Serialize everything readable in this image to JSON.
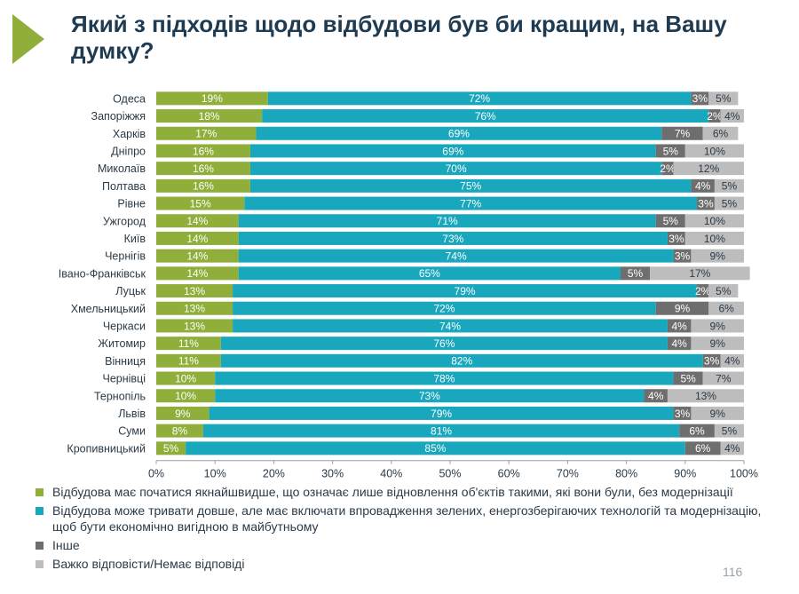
{
  "header": {
    "title": "Який з підходів щодо відбудови був би кращим, на Вашу думку?"
  },
  "chart_data": {
    "type": "bar",
    "orientation": "horizontal",
    "stacked": true,
    "percent_stacked": true,
    "title": "Який з підходів щодо відбудови був би кращим, на Вашу думку?",
    "categories": [
      "Одеса",
      "Запоріжжя",
      "Харків",
      "Дніпро",
      "Миколаїв",
      "Полтава",
      "Рівне",
      "Ужгород",
      "Київ",
      "Чернігів",
      "Івано-Франківськ",
      "Луцьк",
      "Хмельницький",
      "Черкаси",
      "Житомир",
      "Вінниця",
      "Чернівці",
      "Тернопіль",
      "Львів",
      "Суми",
      "Кропивницький"
    ],
    "series": [
      {
        "name": "Відбудова має початися якнайшвидше, що означає лише відновлення об'єктів такими, які вони були, без модернізації",
        "color": "#8fae3a",
        "values": [
          19,
          18,
          17,
          16,
          16,
          16,
          15,
          14,
          14,
          14,
          14,
          13,
          13,
          13,
          11,
          11,
          10,
          10,
          9,
          8,
          5
        ]
      },
      {
        "name": "Відбудова може тривати довше, але має включати впровадження зелених, енергозберігаючих технологій та модернізацію, щоб бути економічно вигідною в майбутньому",
        "color": "#19a7bd",
        "values": [
          72,
          76,
          69,
          69,
          70,
          75,
          77,
          71,
          73,
          74,
          65,
          79,
          72,
          74,
          76,
          82,
          78,
          73,
          79,
          81,
          85
        ]
      },
      {
        "name": "Інше",
        "color": "#6e6e6e",
        "values": [
          3,
          2,
          7,
          5,
          2,
          4,
          3,
          5,
          3,
          3,
          5,
          2,
          9,
          4,
          4,
          3,
          5,
          4,
          3,
          6,
          6
        ]
      },
      {
        "name": "Важко відповісти/Немає відповіді",
        "color": "#bdbdbd",
        "values": [
          5,
          4,
          6,
          10,
          12,
          5,
          5,
          10,
          10,
          9,
          17,
          5,
          6,
          9,
          9,
          4,
          7,
          13,
          9,
          5,
          4
        ]
      }
    ],
    "x_ticks": [
      "0%",
      "10%",
      "20%",
      "30%",
      "40%",
      "50%",
      "60%",
      "70%",
      "80%",
      "90%",
      "100%"
    ],
    "xlim": [
      0,
      100
    ],
    "grid": false,
    "legend_position": "bottom",
    "data_labels": true
  },
  "footer": {
    "page_number": "116"
  }
}
